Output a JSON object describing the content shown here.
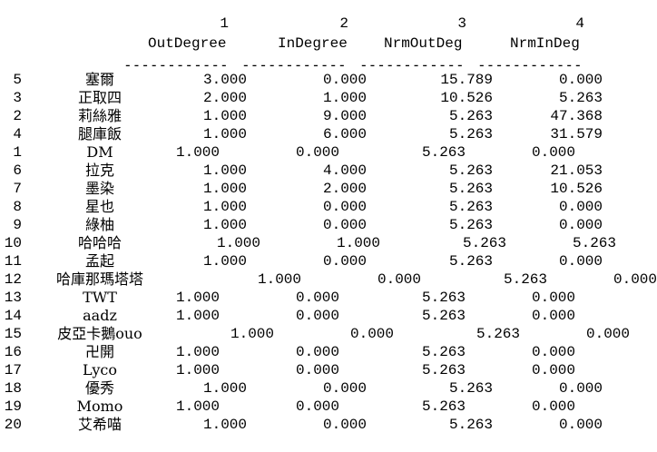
{
  "header": {
    "col_numbers": [
      "1",
      "2",
      "3",
      "4"
    ],
    "col_labels": [
      "OutDegree",
      "InDegree",
      "NrmOutDeg",
      "NrmInDeg"
    ],
    "separator": "------------"
  },
  "rows": [
    {
      "id": "5",
      "name": "塞爾",
      "out": "3.000",
      "in": "0.000",
      "nout": "15.789",
      "nin": "0.000",
      "shift": 1
    },
    {
      "id": "3",
      "name": "正取四",
      "out": "2.000",
      "in": "1.000",
      "nout": "10.526",
      "nin": "5.263",
      "shift": 1
    },
    {
      "id": "2",
      "name": "莉絲雅",
      "out": "1.000",
      "in": "9.000",
      "nout": "5.263",
      "nin": "47.368",
      "shift": 1
    },
    {
      "id": "4",
      "name": "腿庫飯",
      "out": "1.000",
      "in": "6.000",
      "nout": "5.263",
      "nin": "31.579",
      "shift": 1
    },
    {
      "id": "1",
      "name": "DM",
      "out": "1.000",
      "in": "0.000",
      "nout": "5.263",
      "nin": "0.000",
      "shift": 0
    },
    {
      "id": "6",
      "name": "拉克",
      "out": "1.000",
      "in": "4.000",
      "nout": "5.263",
      "nin": "21.053",
      "shift": 1
    },
    {
      "id": "7",
      "name": "墨染",
      "out": "1.000",
      "in": "2.000",
      "nout": "5.263",
      "nin": "10.526",
      "shift": 1
    },
    {
      "id": "8",
      "name": "星也",
      "out": "1.000",
      "in": "0.000",
      "nout": "5.263",
      "nin": "0.000",
      "shift": 1
    },
    {
      "id": "9",
      "name": "綠柚",
      "out": "1.000",
      "in": "0.000",
      "nout": "5.263",
      "nin": "0.000",
      "shift": 1
    },
    {
      "id": "10",
      "name": "哈哈哈",
      "out": "1.000",
      "in": "1.000",
      "nout": "5.263",
      "nin": "5.263",
      "shift": 1.5
    },
    {
      "id": "11",
      "name": "孟起",
      "out": "1.000",
      "in": "0.000",
      "nout": "5.263",
      "nin": "0.000",
      "shift": 1
    },
    {
      "id": "12",
      "name": "哈庫那瑪塔塔",
      "out": "1.000",
      "in": "0.000",
      "nout": "5.263",
      "nin": "0.000",
      "shift": 3
    },
    {
      "id": "13",
      "name": "TWT",
      "out": "1.000",
      "in": "0.000",
      "nout": "5.263",
      "nin": "0.000",
      "shift": 0
    },
    {
      "id": "14",
      "name": "aadz",
      "out": "1.000",
      "in": "0.000",
      "nout": "5.263",
      "nin": "0.000",
      "shift": 0
    },
    {
      "id": "15",
      "name": "皮亞卡鵝ouo",
      "out": "1.000",
      "in": "0.000",
      "nout": "5.263",
      "nin": "0.000",
      "shift": 2
    },
    {
      "id": "16",
      "name": "卍開",
      "out": "1.000",
      "in": "0.000",
      "nout": "5.263",
      "nin": "0.000",
      "shift": 0
    },
    {
      "id": "17",
      "name": "Lyco",
      "out": "1.000",
      "in": "0.000",
      "nout": "5.263",
      "nin": "0.000",
      "shift": 0
    },
    {
      "id": "18",
      "name": "優秀",
      "out": "1.000",
      "in": "0.000",
      "nout": "5.263",
      "nin": "0.000",
      "shift": 1
    },
    {
      "id": "19",
      "name": "Momo",
      "out": "1.000",
      "in": "0.000",
      "nout": "5.263",
      "nin": "0.000",
      "shift": 0
    },
    {
      "id": "20",
      "name": "艾希喵",
      "out": "1.000",
      "in": "0.000",
      "nout": "5.263",
      "nin": "0.000",
      "shift": 1
    }
  ]
}
